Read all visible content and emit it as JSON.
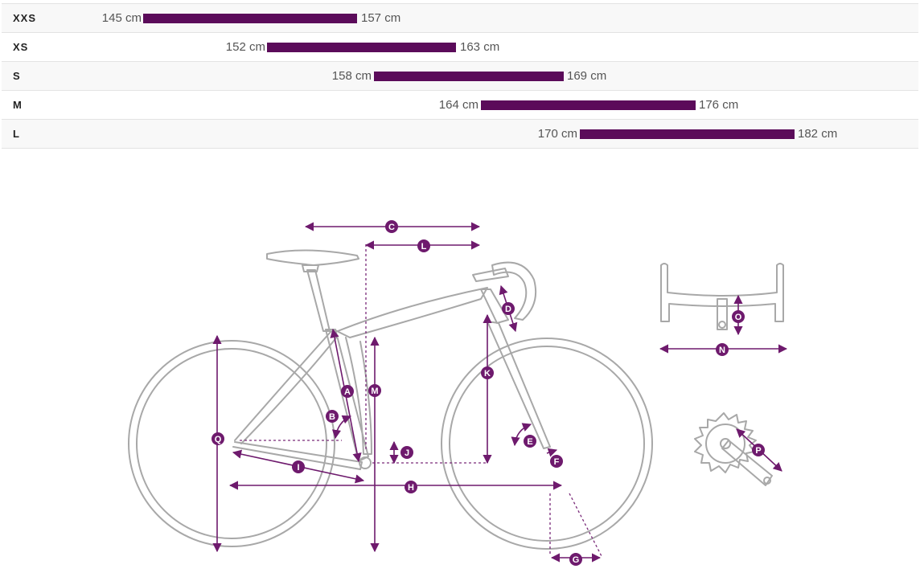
{
  "size_chart": {
    "rows": [
      {
        "size": "XXS",
        "min": 145,
        "max": 157,
        "min_label": "145 cm",
        "max_label": "157 cm"
      },
      {
        "size": "XS",
        "min": 152,
        "max": 163,
        "min_label": "152 cm",
        "max_label": "163 cm"
      },
      {
        "size": "S",
        "min": 158,
        "max": 169,
        "min_label": "158 cm",
        "max_label": "169 cm"
      },
      {
        "size": "M",
        "min": 164,
        "max": 176,
        "min_label": "164 cm",
        "max_label": "176 cm"
      },
      {
        "size": "L",
        "min": 170,
        "max": 182,
        "min_label": "170 cm",
        "max_label": "182 cm"
      }
    ]
  },
  "geometry_diagram": {
    "accent_color": "#6e1a6d",
    "line_color": "#a8a8a8",
    "labels": [
      "A",
      "B",
      "C",
      "D",
      "E",
      "F",
      "G",
      "H",
      "I",
      "J",
      "K",
      "L",
      "M",
      "N",
      "O",
      "P",
      "Q"
    ]
  }
}
